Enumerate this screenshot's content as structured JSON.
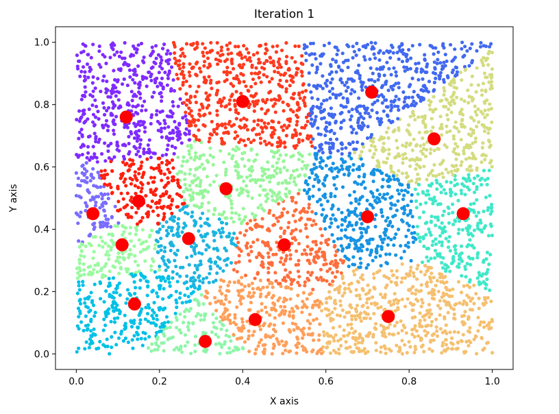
{
  "chart_data": {
    "type": "scatter",
    "title": "Iteration 1",
    "xlabel": "X axis",
    "ylabel": "Y axis",
    "xlim": [
      -0.05,
      1.05
    ],
    "ylim": [
      -0.05,
      1.05
    ],
    "xticks": [
      "0.0",
      "0.2",
      "0.4",
      "0.6",
      "0.8",
      "1.0"
    ],
    "yticks": [
      "0.0",
      "0.2",
      "0.4",
      "0.6",
      "0.8",
      "1.0"
    ],
    "grid": false,
    "n_points_per_cluster_approx": 300,
    "clusters": [
      {
        "color": "#7f2bff",
        "centroid": [
          0.12,
          0.76
        ]
      },
      {
        "color": "#ff3a1f",
        "centroid": [
          0.4,
          0.81
        ]
      },
      {
        "color": "#4169f0",
        "centroid": [
          0.71,
          0.84
        ]
      },
      {
        "color": "#d4dc80",
        "centroid": [
          0.86,
          0.69
        ]
      },
      {
        "color": "#40e8c8",
        "centroid": [
          0.93,
          0.45
        ]
      },
      {
        "color": "#1793e3",
        "centroid": [
          0.7,
          0.44
        ]
      },
      {
        "color": "#ff6e3c",
        "centroid": [
          0.5,
          0.35
        ]
      },
      {
        "color": "#98f59a",
        "centroid": [
          0.36,
          0.53
        ]
      },
      {
        "color": "#ff1f0f",
        "centroid": [
          0.15,
          0.49
        ]
      },
      {
        "color": "#7a6cff",
        "centroid": [
          0.04,
          0.45
        ]
      },
      {
        "color": "#9afaa0",
        "centroid": [
          0.11,
          0.35
        ]
      },
      {
        "color": "#1cb4e0",
        "centroid": [
          0.27,
          0.37
        ]
      },
      {
        "color": "#00c0e6",
        "centroid": [
          0.14,
          0.16
        ]
      },
      {
        "color": "#8ff5a8",
        "centroid": [
          0.31,
          0.04
        ]
      },
      {
        "color": "#ff9f5a",
        "centroid": [
          0.43,
          0.11
        ]
      },
      {
        "color": "#f5c070",
        "centroid": [
          0.75,
          0.12
        ]
      }
    ],
    "centroid_color": "#ff0000"
  }
}
